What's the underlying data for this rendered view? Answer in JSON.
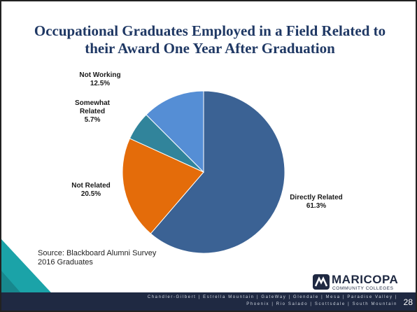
{
  "title": "Occupational Graduates Employed in a Field Related to their Award One Year After Graduation",
  "chart_data": {
    "type": "pie",
    "categories": [
      "Directly Related",
      "Not Related",
      "Somewhat Related",
      "Not Working"
    ],
    "values": [
      61.3,
      20.5,
      5.7,
      12.5
    ],
    "value_labels": [
      "61.3%",
      "20.5%",
      "5.7%",
      "12.5%"
    ],
    "colors": [
      "#3b6294",
      "#e46c0a",
      "#31849b",
      "#558ed5"
    ]
  },
  "source": [
    "Source: Blackboard Alumni Survey",
    "2016 Graduates"
  ],
  "logo": {
    "name": "MARICOPA",
    "sub": "COMMUNITY COLLEGES"
  },
  "footer": {
    "campuses": [
      "Chandler-Gilbert | Estrella Mountain | GateWay | Glendale | Mesa | Paradise Valley |",
      "Phoenix | Rio Salado | Scottsdale | South Mountain"
    ],
    "page": "28"
  }
}
